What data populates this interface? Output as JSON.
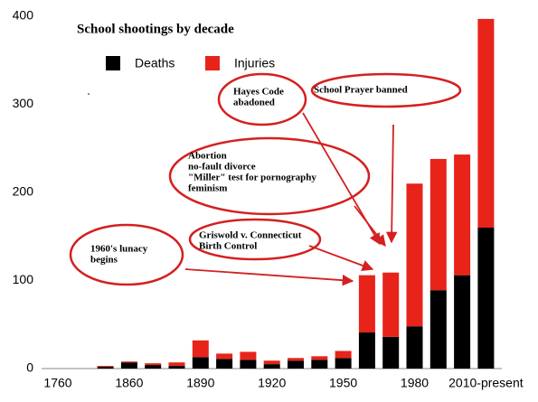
{
  "chart_data": {
    "type": "bar",
    "stacked": true,
    "title": "School shootings by decade",
    "categories": [
      "1760",
      null,
      null,
      "1860",
      null,
      null,
      "1890",
      null,
      null,
      "1920",
      null,
      null,
      "1950",
      null,
      null,
      "1980",
      null,
      null,
      "2010-present"
    ],
    "series": [
      {
        "name": "Deaths",
        "color": "#000000",
        "values": [
          null,
          null,
          2,
          7,
          4,
          3,
          13,
          11,
          10,
          5,
          9,
          10,
          12,
          41,
          36,
          48,
          89,
          106,
          160
        ]
      },
      {
        "name": "Injuries",
        "color": "#e8231a",
        "values": [
          null,
          null,
          1,
          1,
          2,
          4,
          19,
          6,
          9,
          4,
          3,
          4,
          8,
          65,
          73,
          162,
          149,
          137,
          237
        ]
      }
    ],
    "ylim": [
      0,
      400
    ],
    "yticks": [
      0,
      100,
      200,
      300,
      400
    ],
    "grid": false,
    "legend": "top-left",
    "annotations": [
      {
        "lines": [
          "School Prayer banned"
        ]
      },
      {
        "lines": [
          "Hayes Code",
          "abadoned"
        ]
      },
      {
        "lines": [
          "Abortion",
          "no-fault divorce",
          "\"Miller\" test for pornography",
          "feminism"
        ]
      },
      {
        "lines": [
          "Griswold v. Connecticut",
          "Birth Control"
        ]
      },
      {
        "lines": [
          "1960's lunacy",
          "begins"
        ]
      }
    ]
  }
}
